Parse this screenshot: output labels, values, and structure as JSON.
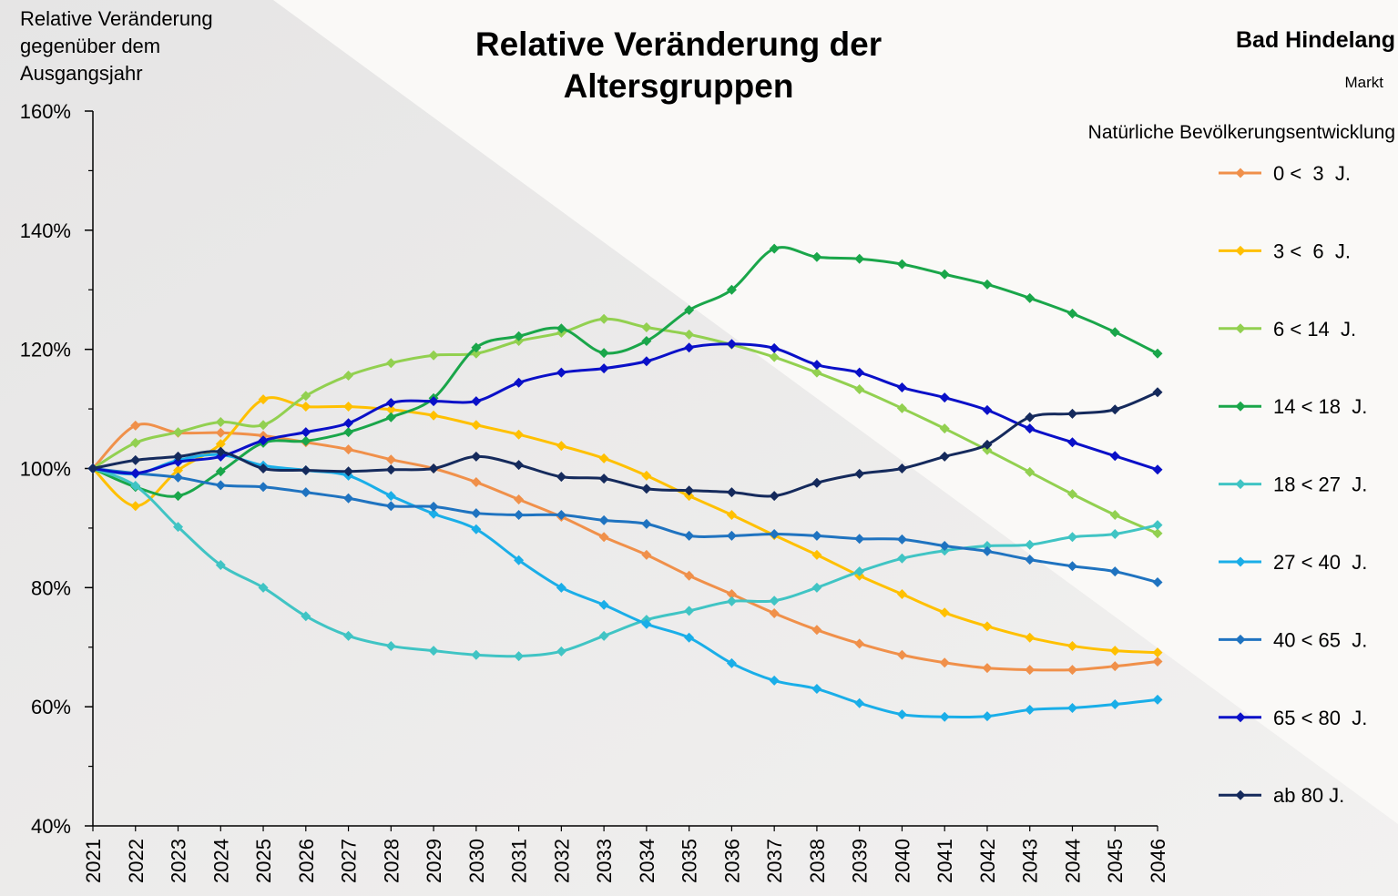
{
  "chart_data": {
    "type": "line",
    "title": "Relative Veränderung der Altersgruppen",
    "ylabel": "Relative Veränderung gegenüber dem Ausgangsjahr",
    "place": "Bad Hindelang",
    "place_type": "Markt",
    "scenario": "Natürliche Bevölkerungsentwicklung",
    "categories": [
      "2021",
      "2022",
      "2023",
      "2024",
      "2025",
      "2026",
      "2027",
      "2028",
      "2029",
      "2030",
      "2031",
      "2032",
      "2033",
      "2034",
      "2035",
      "2036",
      "2037",
      "2038",
      "2039",
      "2040",
      "2041",
      "2042",
      "2043",
      "2044",
      "2045",
      "2046"
    ],
    "ylim": [
      40,
      160
    ],
    "yticks": [
      {
        "value": 40,
        "label": "40%"
      },
      {
        "value": 60,
        "label": "60%"
      },
      {
        "value": 80,
        "label": "80%"
      },
      {
        "value": 100,
        "label": "100%"
      },
      {
        "value": 120,
        "label": "120%"
      },
      {
        "value": 140,
        "label": "140%"
      },
      {
        "value": 160,
        "label": "160%"
      }
    ],
    "series": [
      {
        "name": "0 <  3  J.",
        "color": "#f0904a",
        "values": [
          100,
          107.2,
          106,
          106,
          105.5,
          104.4,
          103.2,
          101.5,
          100,
          97.7,
          94.8,
          91.9,
          88.5,
          85.5,
          82,
          78.9,
          75.7,
          72.9,
          70.6,
          68.7,
          67.4,
          66.5,
          66.2,
          66.2,
          66.8,
          67.6
        ]
      },
      {
        "name": "3 <  6  J.",
        "color": "#ffc000",
        "values": [
          100,
          93.7,
          99.7,
          104.1,
          111.6,
          110.4,
          110.4,
          109.9,
          108.9,
          107.3,
          105.7,
          103.8,
          101.7,
          98.8,
          95.4,
          92.2,
          88.8,
          85.5,
          82,
          78.9,
          75.8,
          73.5,
          71.6,
          70.2,
          69.4,
          69.1
        ]
      },
      {
        "name": "6 < 14  J.",
        "color": "#92d050",
        "values": [
          100,
          104.3,
          106.1,
          107.8,
          107.3,
          112.2,
          115.6,
          117.7,
          119,
          119.3,
          121.4,
          122.8,
          125.1,
          123.7,
          122.5,
          120.8,
          118.7,
          116.1,
          113.3,
          110.1,
          106.7,
          103.1,
          99.4,
          95.7,
          92.2,
          89.1
        ]
      },
      {
        "name": "14 < 18  J.",
        "color": "#1aa64a",
        "values": [
          100,
          96.9,
          95.4,
          99.5,
          104.3,
          104.6,
          106.1,
          108.6,
          111.8,
          120.3,
          122.2,
          123.5,
          119.4,
          121.4,
          126.6,
          130,
          136.9,
          135.5,
          135.2,
          134.3,
          132.6,
          130.9,
          128.6,
          126,
          122.9,
          119.3
        ]
      },
      {
        "name": "18 < 27  J.",
        "color": "#40c4c4",
        "values": [
          100,
          97.1,
          90.2,
          83.8,
          80,
          75.2,
          71.9,
          70.2,
          69.4,
          68.7,
          68.5,
          69.3,
          71.9,
          74.6,
          76.1,
          77.7,
          77.8,
          80,
          82.7,
          84.9,
          86.2,
          87,
          87.2,
          88.5,
          89,
          90.5
        ]
      },
      {
        "name": "27 < 40  J.",
        "color": "#1aaee8",
        "values": [
          100,
          99.1,
          101.4,
          102.3,
          100.5,
          99.7,
          98.8,
          95.4,
          92.4,
          89.8,
          84.6,
          80,
          77.1,
          73.9,
          71.6,
          67.3,
          64.4,
          63,
          60.6,
          58.7,
          58.3,
          58.4,
          59.5,
          59.8,
          60.4,
          61.2
        ]
      },
      {
        "name": "40 < 65  J.",
        "color": "#1f73c0",
        "values": [
          100,
          99.2,
          98.5,
          97.2,
          96.9,
          96,
          95,
          93.7,
          93.6,
          92.5,
          92.2,
          92.2,
          91.3,
          90.7,
          88.7,
          88.7,
          89,
          88.7,
          88.2,
          88.1,
          87,
          86.1,
          84.7,
          83.6,
          82.7,
          80.9
        ]
      },
      {
        "name": "65 < 80  J.",
        "color": "#0a10c8",
        "values": [
          100,
          99.2,
          101.1,
          102,
          104.7,
          106.1,
          107.6,
          111,
          111.3,
          111.3,
          114.4,
          116.1,
          116.8,
          118,
          120.3,
          120.9,
          120.2,
          117.4,
          116.1,
          113.6,
          111.9,
          109.8,
          106.7,
          104.4,
          102.1,
          99.8
        ]
      },
      {
        "name": "ab 80 J.",
        "color": "#152a5c",
        "values": [
          100,
          101.4,
          102,
          102.8,
          100,
          99.7,
          99.5,
          99.8,
          100,
          102,
          100.6,
          98.6,
          98.3,
          96.6,
          96.3,
          96,
          95.4,
          97.6,
          99.1,
          100,
          102,
          104,
          108.6,
          109.2,
          109.9,
          112.8
        ]
      }
    ]
  }
}
